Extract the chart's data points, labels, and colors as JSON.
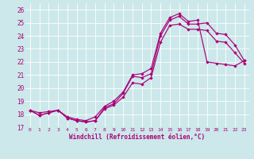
{
  "xlabel": "Windchill (Refroidissement éolien,°C)",
  "bg_color": "#cce8ea",
  "line_color": "#aa0077",
  "grid_color": "#ffffff",
  "xlim": [
    -0.5,
    23.5
  ],
  "ylim": [
    17,
    26.5
  ],
  "yticks": [
    17,
    18,
    19,
    20,
    21,
    22,
    23,
    24,
    25,
    26
  ],
  "xticks": [
    0,
    1,
    2,
    3,
    4,
    5,
    6,
    7,
    8,
    9,
    10,
    11,
    12,
    13,
    14,
    15,
    16,
    17,
    18,
    19,
    20,
    21,
    22,
    23
  ],
  "line1_x": [
    0,
    1,
    2,
    3,
    4,
    5,
    6,
    7,
    8,
    9,
    10,
    11,
    12,
    13,
    14,
    15,
    16,
    17,
    18,
    19,
    20,
    21,
    22,
    23
  ],
  "line1_y": [
    18.3,
    17.9,
    18.1,
    18.3,
    17.7,
    17.5,
    17.4,
    17.5,
    18.5,
    18.8,
    19.6,
    20.9,
    20.8,
    21.1,
    24.0,
    25.2,
    25.5,
    24.9,
    24.9,
    25.0,
    24.2,
    24.1,
    23.3,
    22.1
  ],
  "line2_x": [
    0,
    1,
    2,
    3,
    4,
    5,
    6,
    7,
    8,
    9,
    10,
    11,
    12,
    13,
    14,
    15,
    16,
    17,
    18,
    19,
    20,
    21,
    22,
    23
  ],
  "line2_y": [
    18.3,
    17.9,
    18.1,
    18.3,
    17.7,
    17.5,
    17.4,
    17.5,
    18.4,
    18.7,
    19.3,
    20.4,
    20.3,
    20.8,
    23.5,
    24.8,
    24.9,
    24.5,
    24.5,
    24.4,
    23.6,
    23.5,
    22.7,
    21.9
  ],
  "line3_x": [
    0,
    1,
    2,
    3,
    4,
    5,
    6,
    7,
    8,
    9,
    10,
    11,
    12,
    13,
    14,
    15,
    16,
    17,
    18,
    19,
    20,
    21,
    22,
    23
  ],
  "line3_y": [
    18.3,
    18.1,
    18.2,
    18.3,
    17.8,
    17.6,
    17.5,
    17.8,
    18.6,
    19.0,
    19.7,
    21.0,
    21.1,
    21.5,
    24.2,
    25.4,
    25.7,
    25.1,
    25.2,
    22.0,
    21.9,
    21.8,
    21.7,
    22.1
  ]
}
